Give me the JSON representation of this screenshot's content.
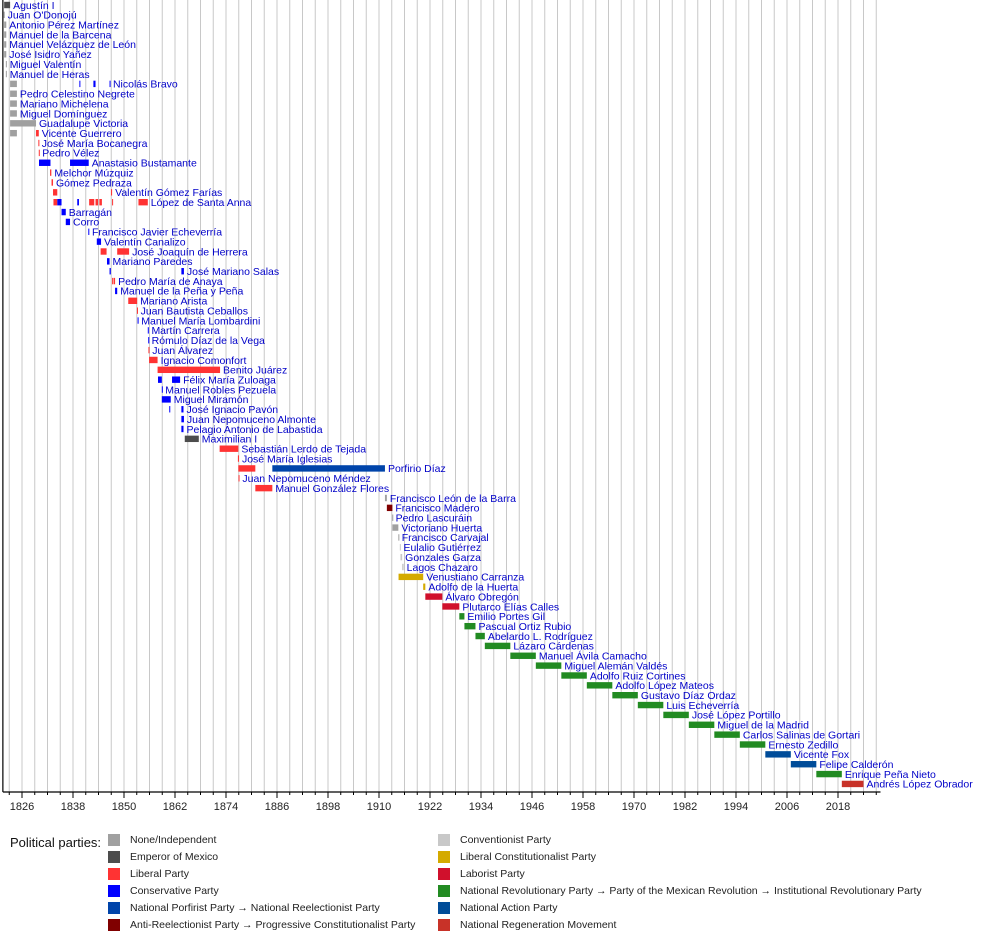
{
  "chart_data": {
    "type": "timeline",
    "xlim": [
      1821.5,
      2028
    ],
    "x_ticks": [
      1826,
      1838,
      1850,
      1862,
      1874,
      1886,
      1898,
      1910,
      1922,
      1934,
      1946,
      1958,
      1970,
      1982,
      1994,
      2006,
      2018
    ],
    "grid": true,
    "grid_step_years": 3,
    "parties": {
      "none": {
        "label": "None/Independent",
        "color": "#a0a0a0"
      },
      "emp": {
        "label": "Emperor of Mexico",
        "color": "#4d4d4d"
      },
      "lib": {
        "label": "Liberal Party",
        "color": "#ff3333"
      },
      "cons": {
        "label": "Conservative Party",
        "color": "#0000ff"
      },
      "porf": {
        "label": "National Porfirist Party → National Reelectionist Party",
        "color": "#0044aa"
      },
      "anti": {
        "label": "Anti-Reelectionist Party → Progressive Constitutionalist Party",
        "color": "#800000"
      },
      "conv": {
        "label": "Conventionist Party",
        "color": "#c8c8c8"
      },
      "libc": {
        "label": "Liberal Constitutionalist Party",
        "color": "#d4aa00"
      },
      "lab": {
        "label": "Laborist Party",
        "color": "#d0102c"
      },
      "pri": {
        "label": "National Revolutionary Party → Party of the Mexican Revolution → Institutional Revolutionary Party",
        "color": "#228b22"
      },
      "pan": {
        "label": "National Action Party",
        "color": "#004c99"
      },
      "morena": {
        "label": "National Regeneration Movement",
        "color": "#c83228"
      }
    },
    "legend_title": "Political parties:",
    "legend_order": [
      [
        "none",
        "emp",
        "lib",
        "cons",
        "porf",
        "anti"
      ],
      [
        "conv",
        "libc",
        "lab",
        "pri",
        "pan",
        "morena"
      ]
    ],
    "legend_placement": "bottom",
    "rows": [
      {
        "name": "Agustín I",
        "segments": [
          [
            1821.8,
            1823.2,
            "emp"
          ]
        ]
      },
      {
        "name": "Juan O'Donojú",
        "segments": [
          [
            1821.7,
            1821.9,
            "none"
          ]
        ]
      },
      {
        "name": "Antonio Pérez Martínez",
        "segments": [
          [
            1821.8,
            1822.3,
            "none"
          ]
        ]
      },
      {
        "name": "Manuel de la Barcena",
        "segments": [
          [
            1821.8,
            1822.3,
            "none"
          ]
        ]
      },
      {
        "name": "Manuel Velázquez de León",
        "segments": [
          [
            1821.8,
            1822.3,
            "none"
          ]
        ]
      },
      {
        "name": "José Isidro Yañez",
        "segments": [
          [
            1821.8,
            1822.3,
            "none"
          ]
        ]
      },
      {
        "name": "Miguel Valentín",
        "segments": [
          [
            1822.2,
            1822.4,
            "none"
          ]
        ]
      },
      {
        "name": "Manuel de Heras",
        "segments": [
          [
            1822.2,
            1822.4,
            "none"
          ]
        ]
      },
      {
        "name": "Nicolás Bravo",
        "segments": [
          [
            1823.2,
            1824.8,
            "none"
          ],
          [
            1839.5,
            1839.6,
            "cons"
          ],
          [
            1842.8,
            1843.3,
            "cons"
          ],
          [
            1846.6,
            1846.7,
            "cons"
          ]
        ]
      },
      {
        "name": "Pedro Celestino Negrete",
        "segments": [
          [
            1823.2,
            1824.8,
            "none"
          ]
        ]
      },
      {
        "name": "Mariano Michelena",
        "segments": [
          [
            1823.2,
            1824.8,
            "none"
          ]
        ]
      },
      {
        "name": "Miguel Domínguez",
        "segments": [
          [
            1823.2,
            1824.8,
            "none"
          ]
        ]
      },
      {
        "name": "Guadalupe Victoria",
        "segments": [
          [
            1823.2,
            1829.3,
            "none"
          ]
        ]
      },
      {
        "name": "Vicente Guerrero",
        "segments": [
          [
            1823.2,
            1824.8,
            "none"
          ],
          [
            1829.3,
            1829.95,
            "lib"
          ]
        ]
      },
      {
        "name": "José María Bocanegra",
        "segments": [
          [
            1829.85,
            1829.95,
            "lib"
          ]
        ]
      },
      {
        "name": "Pedro Vélez",
        "segments": [
          [
            1829.95,
            1830.05,
            "lib"
          ]
        ]
      },
      {
        "name": "Anastasio Bustamante",
        "segments": [
          [
            1830.0,
            1832.7,
            "cons"
          ],
          [
            1837.3,
            1841.7,
            "cons"
          ]
        ]
      },
      {
        "name": "Melchor Múzquiz",
        "segments": [
          [
            1832.6,
            1832.9,
            "lib"
          ]
        ]
      },
      {
        "name": "Gómez Pedraza",
        "segments": [
          [
            1832.95,
            1833.3,
            "lib"
          ]
        ]
      },
      {
        "name": "Valentín Gómez Farías",
        "segments": [
          [
            1833.3,
            1834.3,
            "lib"
          ],
          [
            1846.95,
            1847.2,
            "lib"
          ]
        ]
      },
      {
        "name": "López de Santa Anna",
        "segments": [
          [
            1833.4,
            1834.3,
            "lib"
          ],
          [
            1834.3,
            1835.3,
            "cons"
          ],
          [
            1839.0,
            1839.4,
            "cons"
          ],
          [
            1841.8,
            1843.0,
            "lib"
          ],
          [
            1843.3,
            1843.9,
            "lib"
          ],
          [
            1844.2,
            1844.8,
            "lib"
          ],
          [
            1847.2,
            1847.4,
            "lib"
          ],
          [
            1853.4,
            1855.6,
            "lib"
          ]
        ]
      },
      {
        "name": "Barragán",
        "segments": [
          [
            1835.3,
            1836.3,
            "cons"
          ]
        ]
      },
      {
        "name": "Corro",
        "segments": [
          [
            1836.3,
            1837.3,
            "cons"
          ]
        ]
      },
      {
        "name": "Francisco Javier Echeverría",
        "segments": [
          [
            1841.6,
            1841.75,
            "cons"
          ]
        ]
      },
      {
        "name": "Valentín Canalizo",
        "segments": [
          [
            1843.6,
            1844.6,
            "cons"
          ]
        ]
      },
      {
        "name": "José Joaquín de Herrera",
        "segments": [
          [
            1844.5,
            1845.9,
            "lib"
          ],
          [
            1848.4,
            1851.2,
            "lib"
          ]
        ]
      },
      {
        "name": "Mariano Paredes",
        "segments": [
          [
            1846.0,
            1846.6,
            "cons"
          ]
        ]
      },
      {
        "name": "José Mariano Salas",
        "segments": [
          [
            1846.6,
            1846.9,
            "cons"
          ],
          [
            1863.5,
            1864.1,
            "cons"
          ]
        ]
      },
      {
        "name": "Pedro María de Anaya",
        "segments": [
          [
            1847.2,
            1847.35,
            "lib"
          ],
          [
            1847.55,
            1847.9,
            "lib"
          ]
        ]
      },
      {
        "name": "Manuel de la Peña y Peña",
        "segments": [
          [
            1847.9,
            1848.4,
            "cons"
          ]
        ]
      },
      {
        "name": "Mariano Arista",
        "segments": [
          [
            1851.0,
            1853.1,
            "lib"
          ]
        ]
      },
      {
        "name": "Juan Bautista Ceballos",
        "segments": [
          [
            1853.05,
            1853.2,
            "lib"
          ]
        ]
      },
      {
        "name": "Manuel María Lombardini",
        "segments": [
          [
            1853.2,
            1853.35,
            "cons"
          ]
        ]
      },
      {
        "name": "Martín Carrera",
        "segments": [
          [
            1855.6,
            1855.75,
            "cons"
          ]
        ]
      },
      {
        "name": "Rómulo Díaz de la Vega",
        "segments": [
          [
            1855.7,
            1855.8,
            "cons"
          ]
        ]
      },
      {
        "name": "Juan Álvarez",
        "segments": [
          [
            1855.75,
            1855.95,
            "lib"
          ]
        ]
      },
      {
        "name": "Ignacio Comonfort",
        "segments": [
          [
            1855.9,
            1857.9,
            "lib"
          ]
        ]
      },
      {
        "name": "Benito Juárez",
        "segments": [
          [
            1857.9,
            1872.6,
            "lib"
          ]
        ]
      },
      {
        "name": "Félix María Zuloaga",
        "segments": [
          [
            1858.0,
            1858.9,
            "cons"
          ],
          [
            1861.3,
            1863.2,
            "cons"
          ]
        ]
      },
      {
        "name": "Manuel Robles Pezuela",
        "segments": [
          [
            1858.9,
            1859.0,
            "cons"
          ]
        ]
      },
      {
        "name": "Miguel Miramón",
        "segments": [
          [
            1858.9,
            1861.0,
            "cons"
          ]
        ]
      },
      {
        "name": "José Ignacio Pavón",
        "segments": [
          [
            1860.65,
            1860.75,
            "cons"
          ],
          [
            1863.5,
            1864.0,
            "cons"
          ]
        ]
      },
      {
        "name": "Juan Nepomuceno Almonte",
        "segments": [
          [
            1863.5,
            1864.1,
            "cons"
          ]
        ]
      },
      {
        "name": "Pelagio Antonio de Labastida",
        "segments": [
          [
            1863.5,
            1864.0,
            "cons"
          ]
        ]
      },
      {
        "name": "Maximilian I",
        "segments": [
          [
            1864.3,
            1867.6,
            "emp"
          ]
        ]
      },
      {
        "name": "Sebastián Lerdo de Tejada",
        "segments": [
          [
            1872.5,
            1876.9,
            "lib"
          ]
        ]
      },
      {
        "name": "José María Iglesias",
        "segments": [
          [
            1876.8,
            1877.05,
            "lib"
          ]
        ]
      },
      {
        "name": "Porfirio Díaz",
        "segments": [
          [
            1876.9,
            1880.9,
            "lib"
          ],
          [
            1884.9,
            1911.4,
            "porf"
          ]
        ]
      },
      {
        "name": "Juan Nepomuceno Méndez",
        "segments": [
          [
            1876.95,
            1877.15,
            "lib"
          ]
        ]
      },
      {
        "name": "Manuel González Flores",
        "segments": [
          [
            1880.9,
            1884.9,
            "lib"
          ]
        ]
      },
      {
        "name": "Francisco León de la Barra",
        "segments": [
          [
            1911.4,
            1911.85,
            "none"
          ]
        ]
      },
      {
        "name": "Francisco Madero",
        "segments": [
          [
            1911.85,
            1913.15,
            "anti"
          ]
        ]
      },
      {
        "name": "Pedro Lascuráin",
        "segments": [
          [
            1913.12,
            1913.2,
            "none"
          ]
        ]
      },
      {
        "name": "Victoriano Huerta",
        "segments": [
          [
            1913.15,
            1914.55,
            "none"
          ]
        ]
      },
      {
        "name": "Francisco Carvajal",
        "segments": [
          [
            1914.55,
            1914.65,
            "none"
          ]
        ]
      },
      {
        "name": "Eulalio Gutiérrez",
        "segments": [
          [
            1914.9,
            1915.05,
            "conv"
          ]
        ]
      },
      {
        "name": "Gonzales Garza",
        "segments": [
          [
            1915.05,
            1915.45,
            "conv"
          ]
        ]
      },
      {
        "name": "Lagos Chazaro",
        "segments": [
          [
            1915.45,
            1915.8,
            "conv"
          ]
        ]
      },
      {
        "name": "Venustiano Carranza",
        "segments": [
          [
            1914.6,
            1920.4,
            "libc"
          ]
        ]
      },
      {
        "name": "Adolfo de la Huerta",
        "segments": [
          [
            1920.4,
            1920.9,
            "libc"
          ]
        ]
      },
      {
        "name": "Álvaro Obregón",
        "segments": [
          [
            1920.9,
            1924.9,
            "lab"
          ]
        ]
      },
      {
        "name": "Plutarco Elías Calles",
        "segments": [
          [
            1924.9,
            1928.9,
            "lab"
          ]
        ]
      },
      {
        "name": "Emilio Portes Gil",
        "segments": [
          [
            1928.9,
            1930.1,
            "pri"
          ]
        ]
      },
      {
        "name": "Pascual Ortiz Rubio",
        "segments": [
          [
            1930.1,
            1932.7,
            "pri"
          ]
        ]
      },
      {
        "name": "Abelardo L. Rodríguez",
        "segments": [
          [
            1932.7,
            1934.9,
            "pri"
          ]
        ]
      },
      {
        "name": "Lázaro Cárdenas",
        "segments": [
          [
            1934.9,
            1940.9,
            "pri"
          ]
        ]
      },
      {
        "name": "Manuel Ávila Camacho",
        "segments": [
          [
            1940.9,
            1946.9,
            "pri"
          ]
        ]
      },
      {
        "name": "Miguel Alemán Valdés",
        "segments": [
          [
            1946.9,
            1952.9,
            "pri"
          ]
        ]
      },
      {
        "name": "Adolfo Ruiz Cortines",
        "segments": [
          [
            1952.9,
            1958.9,
            "pri"
          ]
        ]
      },
      {
        "name": "Adolfo López Mateos",
        "segments": [
          [
            1958.9,
            1964.9,
            "pri"
          ]
        ]
      },
      {
        "name": "Gustavo Díaz Ordaz",
        "segments": [
          [
            1964.9,
            1970.9,
            "pri"
          ]
        ]
      },
      {
        "name": "Luis Echeverría",
        "segments": [
          [
            1970.9,
            1976.9,
            "pri"
          ]
        ]
      },
      {
        "name": "José López Portillo",
        "segments": [
          [
            1976.9,
            1982.9,
            "pri"
          ]
        ]
      },
      {
        "name": "Miguel de la Madrid",
        "segments": [
          [
            1982.9,
            1988.9,
            "pri"
          ]
        ]
      },
      {
        "name": "Carlos Salinas de Gortari",
        "segments": [
          [
            1988.9,
            1994.9,
            "pri"
          ]
        ]
      },
      {
        "name": "Ernesto Zedillo",
        "segments": [
          [
            1994.9,
            2000.9,
            "pri"
          ]
        ]
      },
      {
        "name": "Vicente Fox",
        "segments": [
          [
            2000.9,
            2006.9,
            "pan"
          ]
        ]
      },
      {
        "name": "Felipe Calderón",
        "segments": [
          [
            2006.9,
            2012.9,
            "pan"
          ]
        ]
      },
      {
        "name": "Enrique Peña Nieto",
        "segments": [
          [
            2012.9,
            2018.9,
            "pri"
          ]
        ]
      },
      {
        "name": "Andrés López Obrador",
        "segments": [
          [
            2018.9,
            2024.0,
            "morena"
          ]
        ]
      }
    ]
  }
}
